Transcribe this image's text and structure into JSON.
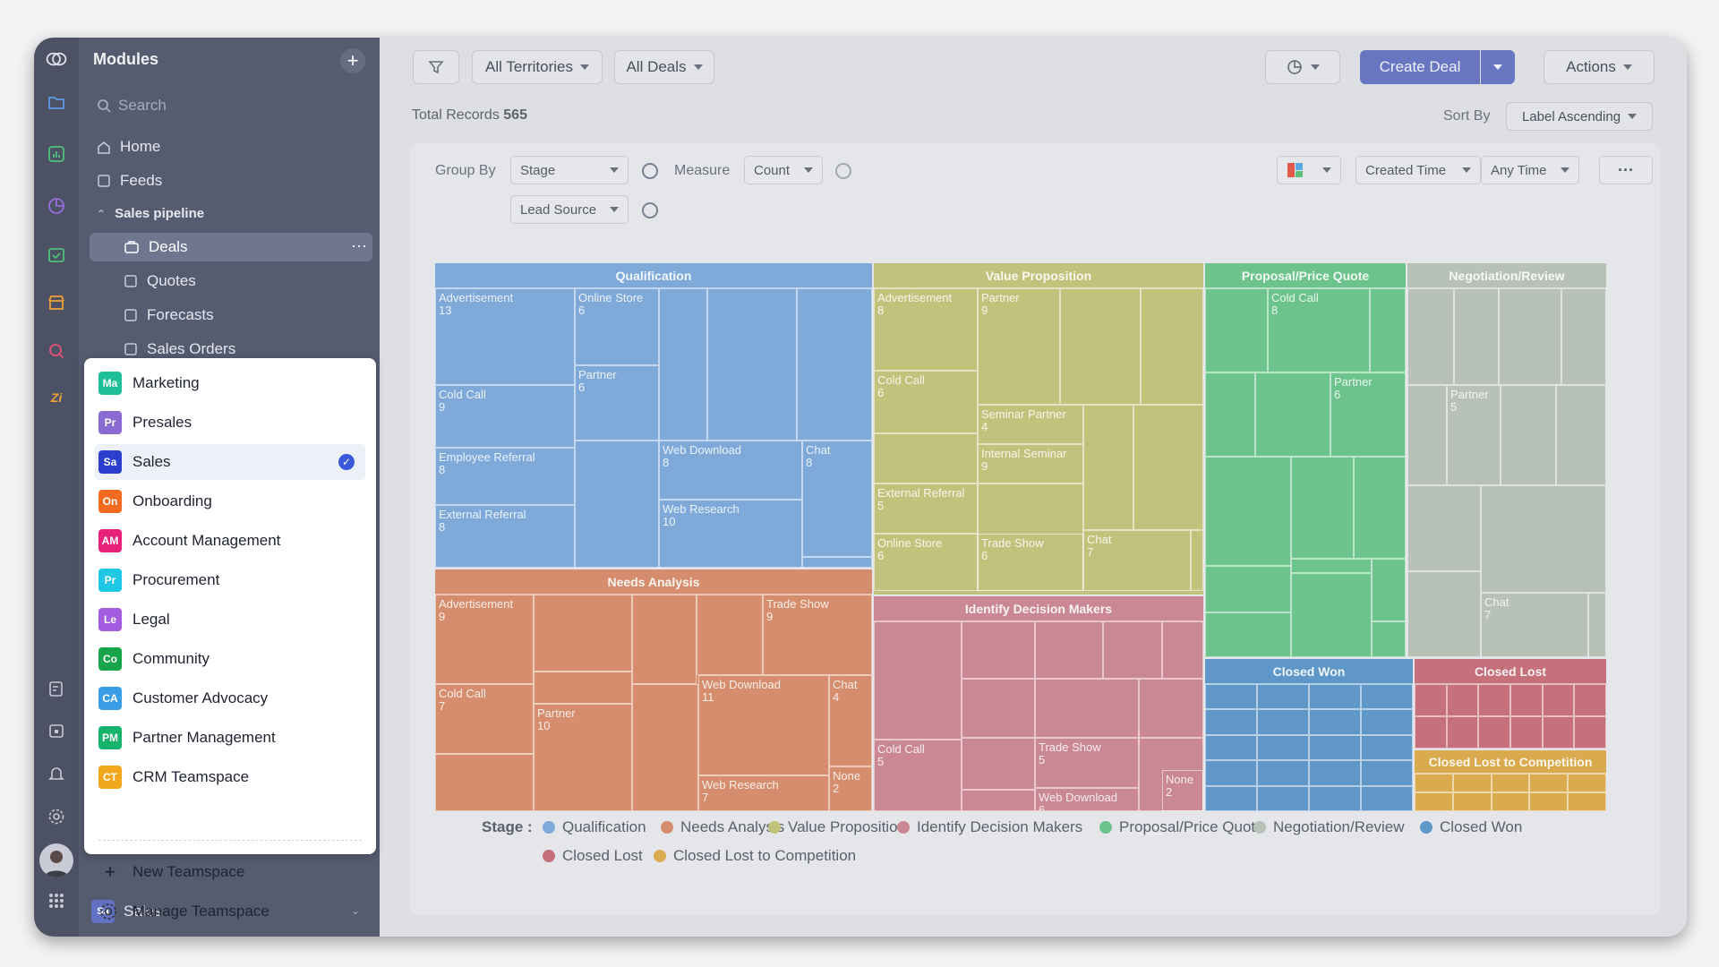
{
  "sidebar": {
    "title": "Modules",
    "search_placeholder": "Search",
    "home": "Home",
    "feeds": "Feeds",
    "section": "Sales pipeline",
    "deals": "Deals",
    "quotes": "Quotes",
    "forecasts": "Forecasts",
    "sales_orders": "Sales Orders",
    "current_teamspace": {
      "badge": "Sa",
      "label": "Sales"
    }
  },
  "toolbar": {
    "territory": "All Territories",
    "deals_filter": "All Deals",
    "create_deal": "Create Deal",
    "actions": "Actions"
  },
  "records": {
    "label": "Total Records",
    "count": "565"
  },
  "sort": {
    "label": "Sort By",
    "value": "Label Ascending"
  },
  "controls": {
    "group_by_label": "Group By",
    "group_by": "Stage",
    "measure_label": "Measure",
    "measure": "Count",
    "group_by_2": "Lead Source",
    "time_field": "Created Time",
    "time_range": "Any Time"
  },
  "treemap": {
    "stages": [
      {
        "name": "Qualification",
        "color": "#7ea9d8"
      },
      {
        "name": "Value Proposition",
        "color": "#c3c27d"
      },
      {
        "name": "Proposal/Price Quote",
        "color": "#6cc38c"
      },
      {
        "name": "Negotiation/Review",
        "color": "#b7c1b8"
      },
      {
        "name": "Needs Analysis",
        "color": "#d58d6d"
      },
      {
        "name": "Identify Decision Makers",
        "color": "#c98894"
      },
      {
        "name": "Closed Won",
        "color": "#5f98c8"
      },
      {
        "name": "Closed Lost",
        "color": "#c5707a"
      },
      {
        "name": "Closed Lost to Competition",
        "color": "#d9aa4e"
      }
    ],
    "cells": [
      {
        "stage": 0,
        "label": "Advertisement",
        "count": "13"
      },
      {
        "stage": 0,
        "label": "Online Store",
        "count": "6"
      },
      {
        "stage": 0,
        "label": "Cold Call",
        "count": "9"
      },
      {
        "stage": 0,
        "label": "Partner",
        "count": "6"
      },
      {
        "stage": 0,
        "label": "Employee Referral",
        "count": "8"
      },
      {
        "stage": 0,
        "label": "Web Download",
        "count": "8"
      },
      {
        "stage": 0,
        "label": "Chat",
        "count": "8"
      },
      {
        "stage": 0,
        "label": "External Referral",
        "count": "8"
      },
      {
        "stage": 0,
        "label": "Web Research",
        "count": "10"
      },
      {
        "stage": 1,
        "label": "Advertisement",
        "count": "8"
      },
      {
        "stage": 1,
        "label": "Partner",
        "count": "9"
      },
      {
        "stage": 1,
        "label": "Cold Call",
        "count": "6"
      },
      {
        "stage": 1,
        "label": "Seminar Partner",
        "count": "4"
      },
      {
        "stage": 1,
        "label": "Internal Seminar",
        "count": "9"
      },
      {
        "stage": 1,
        "label": "External Referral",
        "count": "5"
      },
      {
        "stage": 1,
        "label": "Chat",
        "count": "7"
      },
      {
        "stage": 1,
        "label": "Online Store",
        "count": "6"
      },
      {
        "stage": 1,
        "label": "Trade Show",
        "count": "6"
      },
      {
        "stage": 2,
        "label": "Cold Call",
        "count": "8"
      },
      {
        "stage": 2,
        "label": "Partner",
        "count": "6"
      },
      {
        "stage": 3,
        "label": "Partner",
        "count": "5"
      },
      {
        "stage": 3,
        "label": "Chat",
        "count": "7"
      },
      {
        "stage": 4,
        "label": "Advertisement",
        "count": "9"
      },
      {
        "stage": 4,
        "label": "Trade Show",
        "count": "9"
      },
      {
        "stage": 4,
        "label": "Cold Call",
        "count": "7"
      },
      {
        "stage": 4,
        "label": "Partner",
        "count": "10"
      },
      {
        "stage": 4,
        "label": "Web Download",
        "count": "11"
      },
      {
        "stage": 4,
        "label": "Chat",
        "count": "4"
      },
      {
        "stage": 4,
        "label": "Web Research",
        "count": "7"
      },
      {
        "stage": 4,
        "label": "None",
        "count": "2"
      },
      {
        "stage": 5,
        "label": "Cold Call",
        "count": "5"
      },
      {
        "stage": 5,
        "label": "Trade Show",
        "count": "5"
      },
      {
        "stage": 5,
        "label": "Web Download",
        "count": "6"
      },
      {
        "stage": 5,
        "label": "None",
        "count": "2"
      }
    ]
  },
  "legend": {
    "title": "Stage :"
  },
  "teamspaces": [
    {
      "badge": "Ma",
      "label": "Marketing",
      "color": "#1fbf99"
    },
    {
      "badge": "Pr",
      "label": "Presales",
      "color": "#8a6bd1"
    },
    {
      "badge": "Sa",
      "label": "Sales",
      "color": "#2b3fcf"
    },
    {
      "badge": "On",
      "label": "Onboarding",
      "color": "#f26b21"
    },
    {
      "badge": "AM",
      "label": "Account Management",
      "color": "#e8217a"
    },
    {
      "badge": "Pr",
      "label": "Procurement",
      "color": "#1fc7e6"
    },
    {
      "badge": "Le",
      "label": "Legal",
      "color": "#a45de0"
    },
    {
      "badge": "Co",
      "label": "Community",
      "color": "#17a44b"
    },
    {
      "badge": "CA",
      "label": "Customer Advocacy",
      "color": "#3a9ee6"
    },
    {
      "badge": "PM",
      "label": "Partner Management",
      "color": "#16b36b"
    },
    {
      "badge": "CT",
      "label": "CRM Teamspace",
      "color": "#f2a81c"
    }
  ],
  "teamspace_actions": {
    "new": "New Teamspace",
    "manage": "Manage Teamspace"
  }
}
